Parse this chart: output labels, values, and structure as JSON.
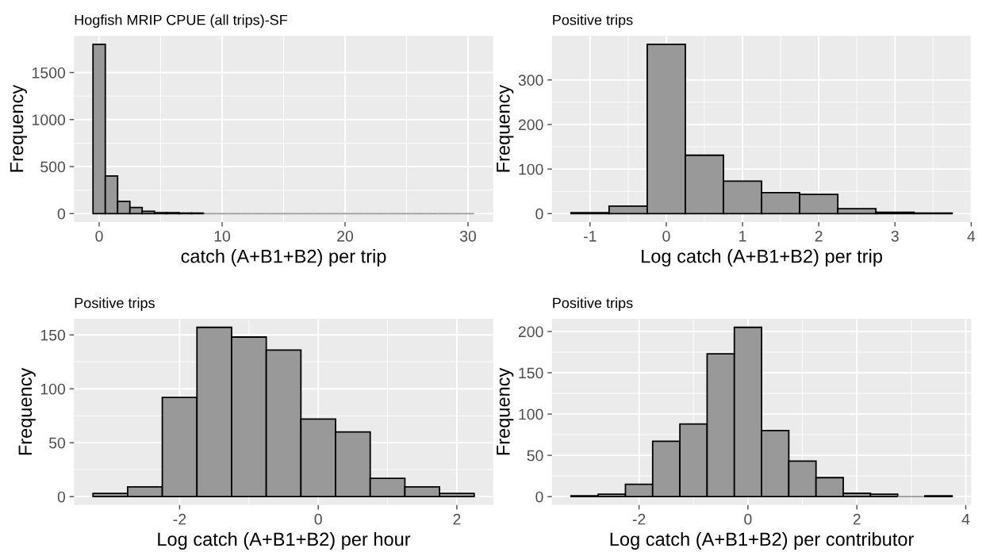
{
  "chart_data": [
    {
      "type": "histogram",
      "title": "Hogfish MRIP CPUE (all trips)-SF",
      "xlabel": "catch (A+B1+B2) per trip",
      "ylabel": "Frequency",
      "color": "#999999",
      "grid": true,
      "bins": [
        -0.5,
        0.5,
        1.5,
        2.5,
        3.5,
        4.5,
        5.5,
        6.5,
        7.5,
        8.5,
        9.5,
        10.5,
        11.5,
        12.5,
        13.5,
        14.5,
        15.5,
        16.5,
        17.5,
        18.5,
        19.5,
        20.5,
        21.5,
        22.5,
        23.5,
        24.5,
        25.5,
        26.5,
        27.5,
        28.5,
        29.5,
        30.5
      ],
      "values": [
        1800,
        400,
        130,
        65,
        25,
        10,
        10,
        5,
        5,
        0,
        0,
        0,
        0,
        0,
        0,
        0,
        0,
        0,
        0,
        0,
        0,
        0,
        0,
        0,
        0,
        0,
        0,
        0,
        0,
        0,
        0
      ],
      "xlim": [
        -2.05,
        32.05
      ],
      "xticks": [
        0,
        10,
        20,
        30
      ],
      "ylim": [
        -90,
        1890
      ],
      "yticks": [
        0,
        500,
        1000,
        1500
      ]
    },
    {
      "type": "histogram",
      "title": "Positive trips",
      "xlabel": "Log catch (A+B1+B2) per trip",
      "ylabel": "Frequency",
      "color": "#999999",
      "grid": true,
      "bins": [
        -1.25,
        -0.75,
        -0.25,
        0.25,
        0.75,
        1.25,
        1.75,
        2.25,
        2.75,
        3.25,
        3.75
      ],
      "values": [
        2,
        17,
        380,
        131,
        73,
        47,
        43,
        11,
        3,
        1
      ],
      "xlim": [
        -1.5,
        4.0
      ],
      "xticks": [
        -1,
        0,
        1,
        2,
        3,
        4
      ],
      "ylim": [
        -19,
        399
      ],
      "yticks": [
        0,
        100,
        200,
        300
      ]
    },
    {
      "type": "histogram",
      "title": "Positive trips",
      "xlabel": "Log catch (A+B1+B2) per hour",
      "ylabel": "Frequency",
      "color": "#999999",
      "grid": true,
      "bins": [
        -3.25,
        -2.75,
        -2.25,
        -1.75,
        -1.25,
        -0.75,
        -0.25,
        0.25,
        0.75,
        1.25,
        1.75,
        2.25
      ],
      "values": [
        3,
        9,
        92,
        157,
        148,
        136,
        72,
        60,
        17,
        9,
        3
      ],
      "xlim": [
        -3.525,
        2.525
      ],
      "xticks": [
        -2,
        0,
        2
      ],
      "ylim": [
        -7.85,
        164.85
      ],
      "yticks": [
        0,
        50,
        100,
        150
      ]
    },
    {
      "type": "histogram",
      "title": "Positive trips",
      "xlabel": "Log catch (A+B1+B2) per contributor",
      "ylabel": "Frequency",
      "color": "#999999",
      "grid": true,
      "bins": [
        -3.25,
        -2.75,
        -2.25,
        -1.75,
        -1.25,
        -0.75,
        -0.25,
        0.25,
        0.75,
        1.25,
        1.75,
        2.25,
        2.75,
        3.25,
        3.75
      ],
      "values": [
        1,
        3,
        15,
        67,
        88,
        173,
        205,
        80,
        43,
        23,
        4,
        3,
        0,
        1
      ],
      "xlim": [
        -3.6,
        4.1
      ],
      "xticks": [
        -2,
        0,
        2,
        4
      ],
      "ylim": [
        -10.25,
        215.25
      ],
      "yticks": [
        0,
        50,
        100,
        150,
        200
      ]
    }
  ]
}
